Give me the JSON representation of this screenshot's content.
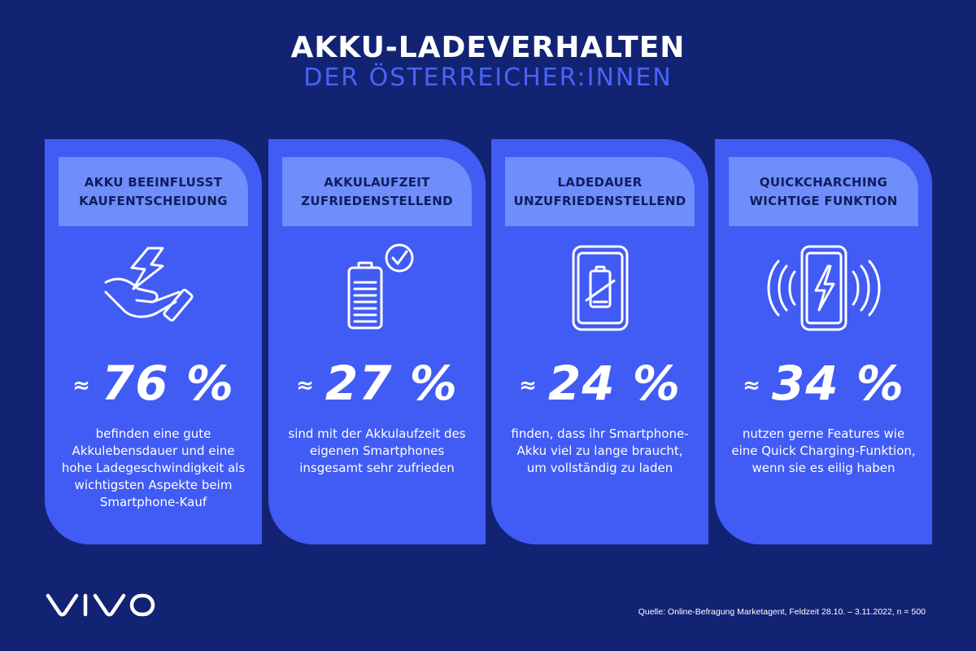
{
  "title": {
    "line1": "AKKU-LADEVERHALTEN",
    "line2": "DER ÖSTERREICHER:INNEN"
  },
  "cards": [
    {
      "header_line1": "AKKU BEEINFLUSST",
      "header_line2": "KAUFENTSCHEIDUNG",
      "icon": "hand-lightning-icon",
      "approx": "≈",
      "value": "76 %",
      "description": "befinden eine gute Akkulebensdauer und eine hohe Ladegeschwindigkeit als wichtigsten Aspekte beim Smartphone-Kauf"
    },
    {
      "header_line1": "AKKULAUFZEIT",
      "header_line2": "ZUFRIEDENSTELLEND",
      "icon": "battery-check-icon",
      "approx": "≈",
      "value": "27 %",
      "description": "sind mit der Akkulaufzeit des eigenen Smartphones insgesamt sehr zufrieden"
    },
    {
      "header_line1": "LADEDAUER",
      "header_line2": "UNZUFRIEDENSTELLEND",
      "icon": "phone-low-battery-icon",
      "approx": "≈",
      "value": "24 %",
      "description": "finden, dass ihr Smartphone-Akku viel zu lange braucht, um vollständig zu laden"
    },
    {
      "header_line1": "QUICKCHARCHING",
      "header_line2": "WICHTIGE FUNKTION",
      "icon": "phone-quick-charge-icon",
      "approx": "≈",
      "value": "34 %",
      "description": "nutzen gerne Features wie eine Quick Charging-Funktion, wenn sie es eilig haben"
    }
  ],
  "logo": "vivo",
  "source": "Quelle: Online-Befragung Marketagent, Feldzeit 28.10. – 3.11.2022, n = 500",
  "colors": {
    "background": "#122373",
    "card": "#415bf5",
    "card_header": "#6f8dfb",
    "subtitle": "#4a63f7"
  }
}
